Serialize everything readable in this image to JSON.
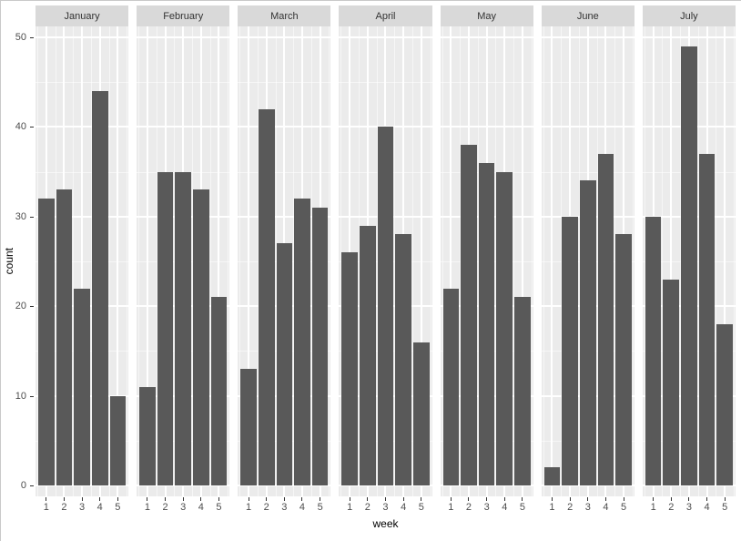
{
  "figure": {
    "y_axis_title": "count",
    "x_axis_title": "week"
  },
  "colors": {
    "bar": "#595959",
    "panel_bg": "#EBEBEB",
    "strip_bg": "#D9D9D9",
    "gridline": "#FFFFFF",
    "axis_text": "#4D4D4D",
    "tick_mark": "#333333"
  },
  "chart_data": {
    "type": "bar",
    "title": "",
    "xlabel": "week",
    "ylabel": "count",
    "facet_variable": "month",
    "categories": [
      "1",
      "2",
      "3",
      "4",
      "5"
    ],
    "ylim": [
      0,
      50
    ],
    "y_major_ticks": [
      0,
      10,
      20,
      30,
      40,
      50
    ],
    "y_minor_ticks": [
      5,
      15,
      25,
      35,
      45
    ],
    "grid": true,
    "legend_position": "none",
    "series": [
      {
        "name": "January",
        "values": [
          32,
          33,
          22,
          44,
          10
        ]
      },
      {
        "name": "February",
        "values": [
          11,
          35,
          35,
          33,
          21
        ]
      },
      {
        "name": "March",
        "values": [
          13,
          42,
          27,
          32,
          31
        ]
      },
      {
        "name": "April",
        "values": [
          26,
          29,
          40,
          28,
          16
        ]
      },
      {
        "name": "May",
        "values": [
          22,
          38,
          36,
          35,
          21
        ]
      },
      {
        "name": "June",
        "values": [
          2,
          30,
          34,
          37,
          28
        ]
      },
      {
        "name": "July",
        "values": [
          30,
          23,
          49,
          37,
          18
        ]
      }
    ]
  }
}
